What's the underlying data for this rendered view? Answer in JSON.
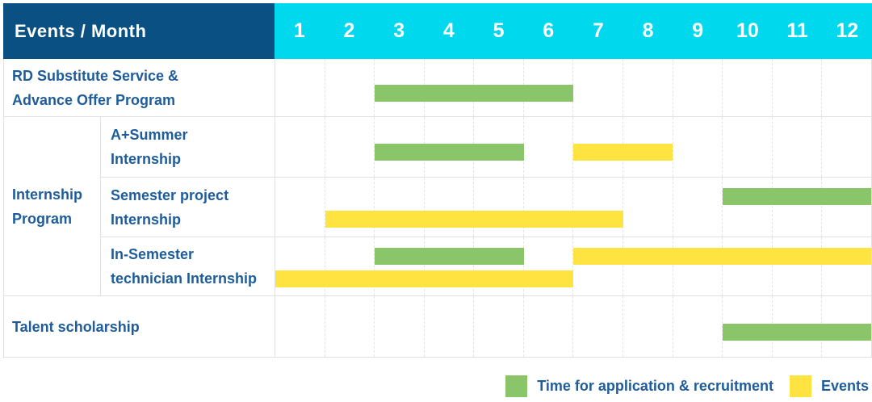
{
  "header": {
    "title": "Events / Month"
  },
  "colors": {
    "header_navy": "#0B5083",
    "header_cyan": "#00D8ED",
    "recruitment_green": "#8BC56A",
    "event_yellow": "#FFE341",
    "label_blue": "#1E5C9B"
  },
  "chart_data": {
    "type": "gantt",
    "title": "Events / Month",
    "x_axis": "Month",
    "months": [
      "1",
      "2",
      "3",
      "4",
      "5",
      "6",
      "7",
      "8",
      "9",
      "10",
      "11",
      "12"
    ],
    "x_range": [
      1,
      12
    ],
    "grid": true,
    "bar_kinds": {
      "recruitment": "Time for application & recruitment",
      "event": "Events"
    },
    "groups": [
      {
        "group_lines": null,
        "rows": [
          {
            "label_lines": [
              "RD Substitute Service &",
              "Advance Offer Program"
            ],
            "bars": [
              {
                "kind": "recruitment",
                "start_month": 3,
                "end_month": 6,
                "lane": "center"
              }
            ]
          }
        ]
      },
      {
        "group_lines": [
          "Internship",
          "Program"
        ],
        "rows": [
          {
            "label_lines": [
              "A+Summer",
              "Internship"
            ],
            "bars": [
              {
                "kind": "recruitment",
                "start_month": 3,
                "end_month": 5,
                "lane": "center"
              },
              {
                "kind": "event",
                "start_month": 7,
                "end_month": 8,
                "lane": "center"
              }
            ]
          },
          {
            "label_lines": [
              "Semester project",
              "Internship"
            ],
            "bars": [
              {
                "kind": "recruitment",
                "start_month": 10,
                "end_month": 12,
                "lane": "upper"
              },
              {
                "kind": "event",
                "start_month": 2,
                "end_month": 7,
                "lane": "lower"
              }
            ]
          },
          {
            "label_lines": [
              "In-Semester",
              "technician Internship"
            ],
            "bars": [
              {
                "kind": "recruitment",
                "start_month": 3,
                "end_month": 5,
                "lane": "upper"
              },
              {
                "kind": "event",
                "start_month": 7,
                "end_month": 12,
                "lane": "upper"
              },
              {
                "kind": "event",
                "start_month": 1,
                "end_month": 6,
                "lane": "lower"
              }
            ]
          }
        ]
      },
      {
        "group_lines": null,
        "rows": [
          {
            "label_lines": [
              "Talent scholarship"
            ],
            "bars": [
              {
                "kind": "recruitment",
                "start_month": 10,
                "end_month": 12,
                "lane": "center"
              }
            ]
          }
        ]
      }
    ]
  },
  "legend": {
    "items": [
      {
        "label": "Time for application & recruitment",
        "kind": "recruitment"
      },
      {
        "label": "Events",
        "kind": "event"
      }
    ]
  }
}
